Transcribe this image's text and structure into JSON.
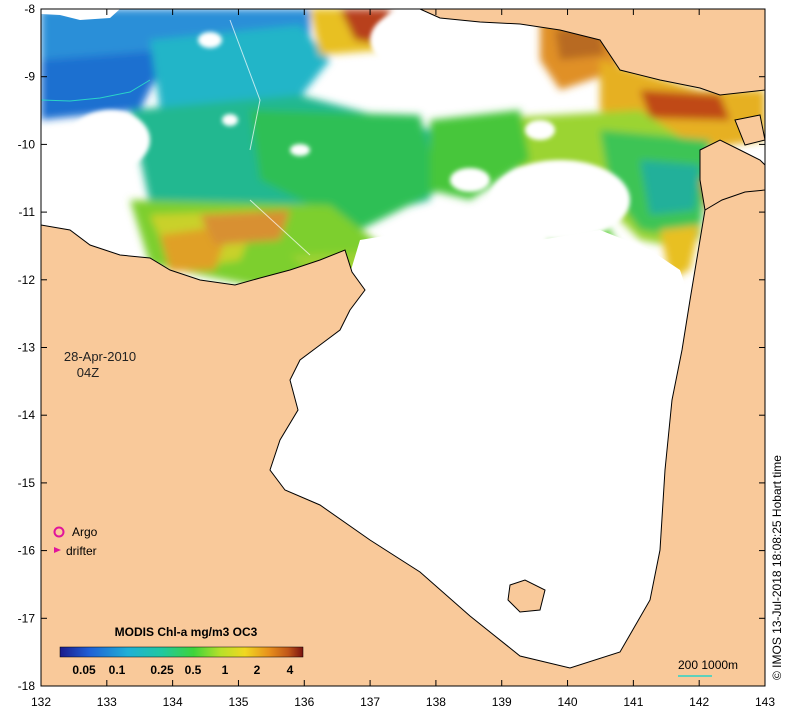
{
  "map": {
    "date": "28-Apr-2010",
    "time": "04Z",
    "credit": "© IMOS 13-Jul-2018 18:08:25 Hobart time",
    "legend": {
      "argo": "Argo",
      "drifter": "drifter"
    },
    "colorbar": {
      "title": "MODIS Chl-a mg/m3 OC3",
      "tick_labels": [
        "0.05",
        "0.1",
        "0.25",
        "0.5",
        "1",
        "2",
        "4"
      ]
    },
    "scale": {
      "label": "200  1000m"
    },
    "longitude_labels": [
      "132",
      "133",
      "134",
      "135",
      "136",
      "137",
      "138",
      "139",
      "140",
      "141",
      "142",
      "143"
    ],
    "latitude_labels": [
      "-8",
      "-9",
      "-10",
      "-11",
      "-12",
      "-13",
      "-14",
      "-15",
      "-16",
      "-17",
      "-18"
    ],
    "colors": {
      "land": "#f9c99a",
      "ocean_no_data": "#ffffff",
      "argo_marker": "#e0149b",
      "drifter_marker": "#e0149b",
      "isobath": "#2ad4c8"
    }
  }
}
